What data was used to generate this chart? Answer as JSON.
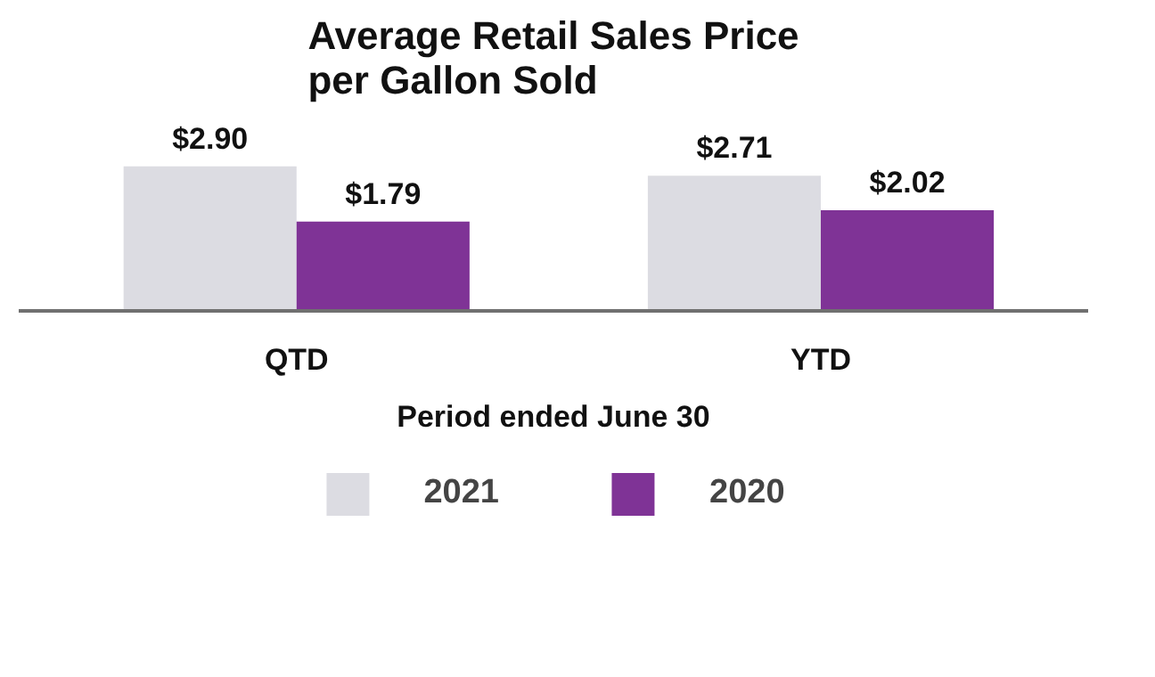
{
  "chart_data": {
    "type": "bar",
    "title": "Average Retail Sales Price\nper Gallon Sold",
    "xlabel": "Period ended June 30",
    "categories": [
      "QTD",
      "YTD"
    ],
    "series": [
      {
        "name": "2021",
        "color": "#dcdce2",
        "values": [
          2.9,
          2.71
        ],
        "value_labels": [
          "$2.90",
          "$2.71"
        ]
      },
      {
        "name": "2020",
        "color": "#7f3396",
        "values": [
          1.79,
          2.02
        ],
        "value_labels": [
          "$1.79",
          "$2.02"
        ]
      }
    ],
    "legend": "bottom"
  }
}
